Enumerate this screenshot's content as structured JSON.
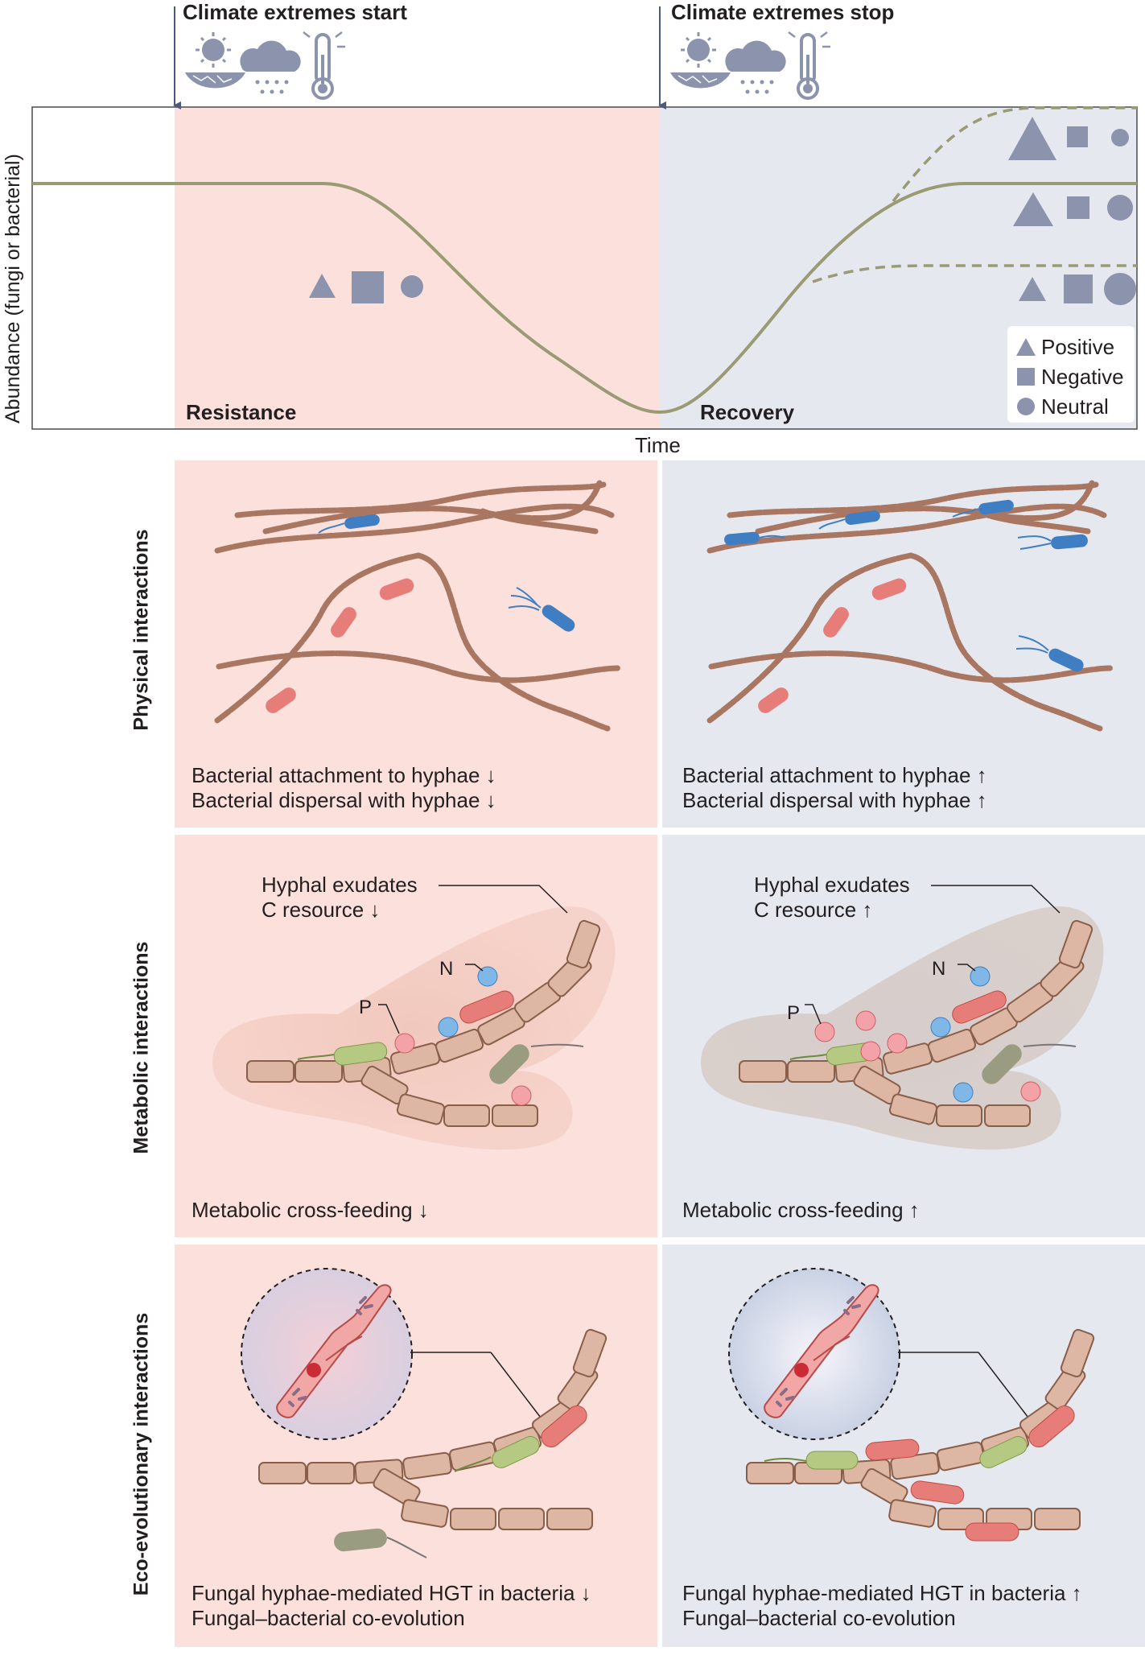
{
  "events": {
    "start": "Climate extremes start",
    "stop": "Climate extremes stop"
  },
  "plot": {
    "y_axis_label": "Abundance (fungi or bacterial)",
    "x_axis_label": "Time",
    "phases": [
      "Resistance",
      "Recovery"
    ]
  },
  "legend": [
    {
      "shape": "triangle",
      "label": "Positive"
    },
    {
      "shape": "square",
      "label": "Negative"
    },
    {
      "shape": "circle",
      "label": "Neutral"
    }
  ],
  "rows": [
    {
      "label": "Physical interactions",
      "left_caption": [
        "Bacterial attachment to hyphae ↓",
        "Bacterial dispersal with hyphae ↓"
      ],
      "right_caption": [
        "Bacterial attachment to hyphae ↑",
        "Bacterial dispersal with hyphae ↑"
      ]
    },
    {
      "label": "Metabolic interactions",
      "left_callout": [
        "Hyphal exudates",
        "C resource ↓"
      ],
      "right_callout": [
        "Hyphal exudates",
        "C resource ↑"
      ],
      "nutrients": [
        "N",
        "P"
      ],
      "left_caption": [
        "Metabolic cross-feeding ↓"
      ],
      "right_caption": [
        "Metabolic cross-feeding ↑"
      ]
    },
    {
      "label": "Eco-evolutionary interactions",
      "left_caption": [
        "Fungal hyphae-mediated HGT in bacteria ↓",
        "Fungal–bacterial co-evolution"
      ],
      "right_caption": [
        "Fungal hyphae-mediated HGT in bacteria ↑",
        "Fungal–bacterial co-evolution"
      ]
    }
  ],
  "colors": {
    "resistance_bg": "#fbe0dc",
    "recovery_bg": "#e6e8f0",
    "curve": "#9a9a74",
    "shape": "#8b93ad",
    "hypha": "#a97761",
    "bacteria_red": "#e77d78",
    "bacteria_blue": "#3f7ec2",
    "bacteria_green": "#b5c982",
    "bacteria_olive": "#9a9c82"
  }
}
